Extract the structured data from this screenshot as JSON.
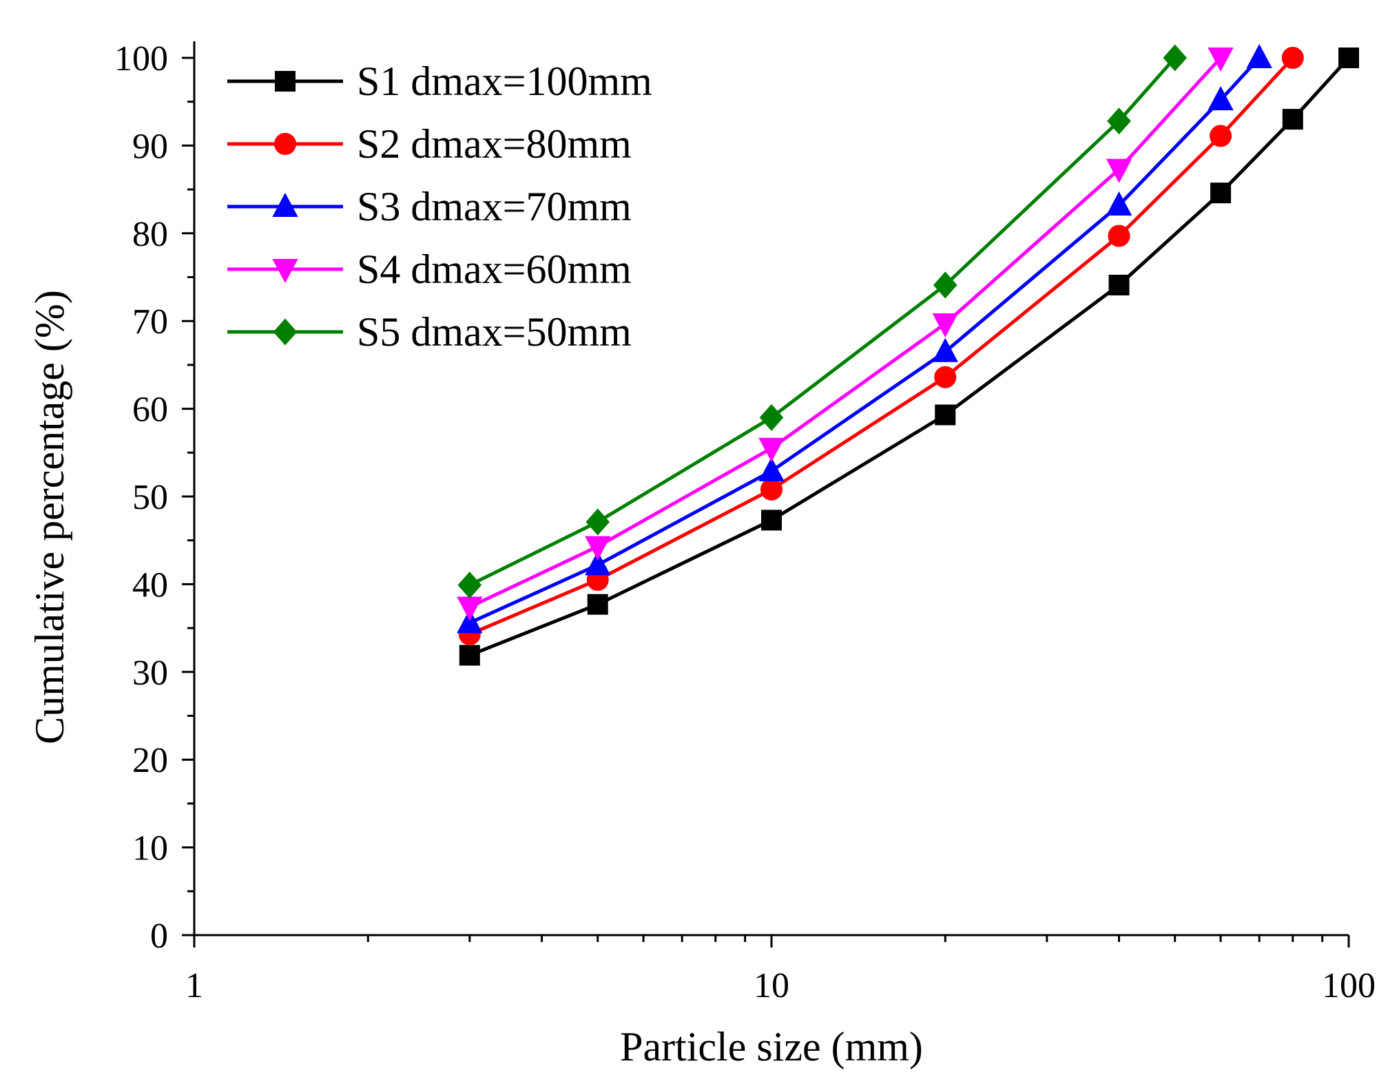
{
  "chart_data": {
    "type": "line",
    "title": "",
    "xlabel": "Particle size (mm)",
    "ylabel": "Cumulative percentage (%)",
    "xscale": "log",
    "xlim": [
      1,
      100
    ],
    "ylim": [
      0,
      100
    ],
    "x_ticks": [
      1,
      10,
      100
    ],
    "x_tick_labels": [
      "1",
      "10",
      "100"
    ],
    "y_ticks": [
      0,
      10,
      20,
      30,
      40,
      50,
      60,
      70,
      80,
      90,
      100
    ],
    "y_tick_labels": [
      "0",
      "10",
      "20",
      "30",
      "40",
      "50",
      "60",
      "70",
      "80",
      "90",
      "100"
    ],
    "grid": false,
    "legend_position": "top-left",
    "series": [
      {
        "name": "S1 dmax=100mm",
        "color": "#000000",
        "marker": "square",
        "x": [
          3,
          5,
          10,
          20,
          40,
          60,
          80,
          100
        ],
        "y": [
          31.9,
          37.7,
          47.3,
          59.3,
          74.1,
          84.6,
          93.0,
          100.0
        ]
      },
      {
        "name": "S2 dmax=80mm",
        "color": "#ff0000",
        "marker": "circle",
        "x": [
          3,
          5,
          10,
          20,
          40,
          60,
          80
        ],
        "y": [
          34.3,
          40.5,
          50.8,
          63.6,
          79.7,
          91.1,
          100.0
        ]
      },
      {
        "name": "S3 dmax=70mm",
        "color": "#0000ff",
        "marker": "triangle-up",
        "x": [
          3,
          5,
          10,
          20,
          40,
          60,
          70
        ],
        "y": [
          35.6,
          42.2,
          52.9,
          66.5,
          83.2,
          95.2,
          100.0
        ]
      },
      {
        "name": "S4 dmax=60mm",
        "color": "#ff00ff",
        "marker": "triangle-down",
        "x": [
          3,
          5,
          10,
          20,
          40,
          60
        ],
        "y": [
          37.4,
          44.3,
          55.5,
          69.7,
          87.3,
          100.0
        ]
      },
      {
        "name": "S5 dmax=50mm",
        "color": "#008000",
        "marker": "diamond",
        "x": [
          3,
          5,
          10,
          20,
          40,
          50
        ],
        "y": [
          39.9,
          47.1,
          59.0,
          74.1,
          92.8,
          100.0
        ]
      }
    ]
  }
}
